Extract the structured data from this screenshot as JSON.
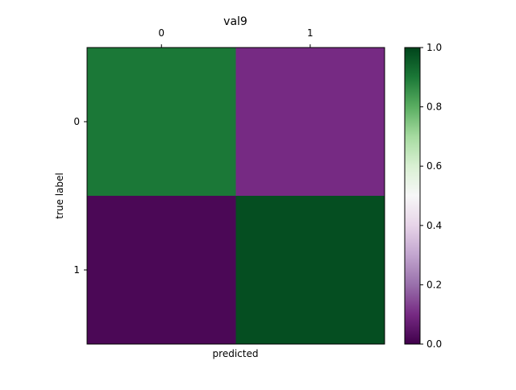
{
  "chart_data": {
    "type": "heatmap",
    "title": "val9",
    "xlabel": "predicted",
    "ylabel": "true label",
    "x_categories": [
      "0",
      "1"
    ],
    "y_categories": [
      "0",
      "1"
    ],
    "x_ticks_position": "top",
    "values": [
      [
        0.9,
        0.1
      ],
      [
        0.02,
        0.98
      ]
    ],
    "colormap": "PRGn",
    "colormap_stops": [
      "#40004b",
      "#762a83",
      "#9970ab",
      "#c2a5cf",
      "#e7d4e8",
      "#f7f7f7",
      "#d9f0d3",
      "#a6dba0",
      "#5aae61",
      "#1b7837",
      "#00441b"
    ],
    "vmin": 0.0,
    "vmax": 1.0,
    "colorbar_ticks": [
      "0.0",
      "0.2",
      "0.4",
      "0.6",
      "0.8",
      "1.0"
    ],
    "grid": false
  }
}
